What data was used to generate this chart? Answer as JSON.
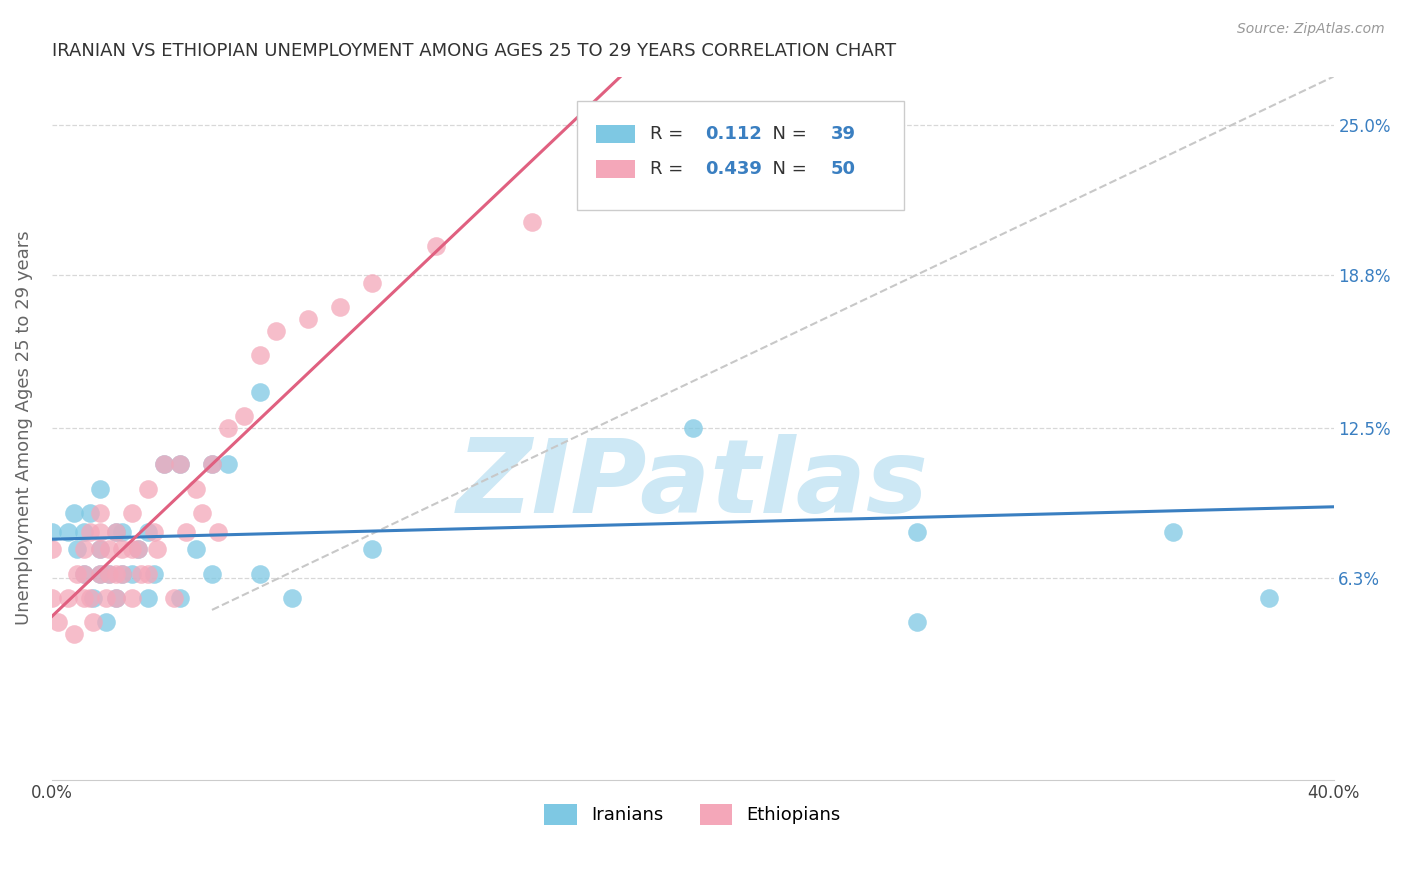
{
  "title": "IRANIAN VS ETHIOPIAN UNEMPLOYMENT AMONG AGES 25 TO 29 YEARS CORRELATION CHART",
  "source": "Source: ZipAtlas.com",
  "ylabel": "Unemployment Among Ages 25 to 29 years",
  "xlim": [
    0.0,
    0.4
  ],
  "ylim": [
    -0.02,
    0.27
  ],
  "xticks": [
    0.0,
    0.05,
    0.1,
    0.15,
    0.2,
    0.25,
    0.3,
    0.35,
    0.4
  ],
  "ytick_labels_right": [
    "6.3%",
    "12.5%",
    "18.8%",
    "25.0%"
  ],
  "ytick_vals_right": [
    0.063,
    0.125,
    0.188,
    0.25
  ],
  "iranian_color": "#7ec8e3",
  "ethiopian_color": "#f4a7b9",
  "iranian_line_color": "#3a7fc1",
  "ethiopian_line_color": "#e06080",
  "ref_line_color": "#c8c8c8",
  "R_iranian": 0.112,
  "N_iranian": 39,
  "R_ethiopian": 0.439,
  "N_ethiopian": 50,
  "iranians_x": [
    0.0,
    0.005,
    0.007,
    0.008,
    0.01,
    0.01,
    0.012,
    0.013,
    0.015,
    0.015,
    0.015,
    0.017,
    0.018,
    0.02,
    0.02,
    0.022,
    0.022,
    0.025,
    0.027,
    0.03,
    0.03,
    0.032,
    0.035,
    0.04,
    0.04,
    0.045,
    0.05,
    0.05,
    0.055,
    0.065,
    0.065,
    0.075,
    0.1,
    0.17,
    0.2,
    0.27,
    0.27,
    0.35,
    0.38
  ],
  "iranians_y": [
    0.082,
    0.082,
    0.09,
    0.075,
    0.065,
    0.082,
    0.09,
    0.055,
    0.065,
    0.075,
    0.1,
    0.045,
    0.065,
    0.055,
    0.082,
    0.065,
    0.082,
    0.065,
    0.075,
    0.055,
    0.082,
    0.065,
    0.11,
    0.11,
    0.055,
    0.075,
    0.11,
    0.065,
    0.11,
    0.14,
    0.065,
    0.055,
    0.075,
    0.22,
    0.125,
    0.082,
    0.045,
    0.082,
    0.055
  ],
  "ethiopians_x": [
    0.0,
    0.0,
    0.002,
    0.005,
    0.007,
    0.008,
    0.01,
    0.01,
    0.01,
    0.012,
    0.012,
    0.013,
    0.015,
    0.015,
    0.015,
    0.015,
    0.017,
    0.018,
    0.018,
    0.02,
    0.02,
    0.02,
    0.022,
    0.022,
    0.025,
    0.025,
    0.025,
    0.027,
    0.028,
    0.03,
    0.03,
    0.032,
    0.033,
    0.035,
    0.038,
    0.04,
    0.042,
    0.045,
    0.047,
    0.05,
    0.052,
    0.055,
    0.06,
    0.065,
    0.07,
    0.08,
    0.09,
    0.1,
    0.12,
    0.15
  ],
  "ethiopians_y": [
    0.055,
    0.075,
    0.045,
    0.055,
    0.04,
    0.065,
    0.055,
    0.065,
    0.075,
    0.055,
    0.082,
    0.045,
    0.065,
    0.075,
    0.082,
    0.09,
    0.055,
    0.065,
    0.075,
    0.055,
    0.065,
    0.082,
    0.065,
    0.075,
    0.075,
    0.09,
    0.055,
    0.075,
    0.065,
    0.1,
    0.065,
    0.082,
    0.075,
    0.11,
    0.055,
    0.11,
    0.082,
    0.1,
    0.09,
    0.11,
    0.082,
    0.125,
    0.13,
    0.155,
    0.165,
    0.17,
    0.175,
    0.185,
    0.2,
    0.21
  ],
  "watermark": "ZIPatlas",
  "watermark_color": "#cde8f5",
  "background_color": "#ffffff",
  "grid_color": "#d8d8d8"
}
